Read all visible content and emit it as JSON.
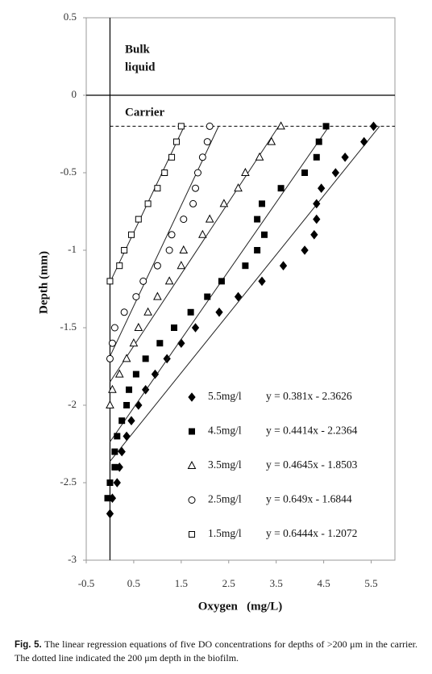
{
  "chart_data": {
    "type": "scatter",
    "xlabel": "Oxygen   (mg/L)",
    "ylabel": "Depth  (mm)",
    "xlim": [
      -0.5,
      6
    ],
    "ylim": [
      -3,
      0.5
    ],
    "xticks": [
      -0.5,
      0.5,
      1.5,
      2.5,
      3.5,
      4.5,
      5.5
    ],
    "yticks": [
      0.5,
      0,
      -0.5,
      -1,
      -1.5,
      -2,
      -2.5,
      -3
    ],
    "legend": "lower right",
    "reference_lines": [
      {
        "y": 0,
        "style": "solid"
      },
      {
        "y": -0.2,
        "style": "dashed"
      }
    ],
    "annotations": [
      {
        "lines": [
          "Bulk",
          "liquid"
        ]
      },
      {
        "lines": [
          "Carrier"
        ]
      }
    ],
    "series": [
      {
        "name": "5.5mg/l",
        "marker": "diamond",
        "filled": true,
        "color": "#000000",
        "x": [
          5.55,
          5.35,
          4.95,
          4.75,
          4.45,
          4.35,
          4.35,
          4.3,
          4.1,
          3.65,
          3.2,
          2.7,
          2.3,
          1.8,
          1.5,
          1.2,
          0.95,
          0.75,
          0.6,
          0.45,
          0.35,
          0.25,
          0.2,
          0.15,
          0.05,
          0
        ],
        "values": [
          -0.2,
          -0.3,
          -0.4,
          -0.5,
          -0.6,
          -0.7,
          -0.8,
          -0.9,
          -1.0,
          -1.1,
          -1.2,
          -1.3,
          -1.4,
          -1.5,
          -1.6,
          -1.7,
          -1.8,
          -1.9,
          -2.0,
          -2.1,
          -2.2,
          -2.3,
          -2.4,
          -2.5,
          -2.6,
          -2.7
        ],
        "fit": {
          "slope": 0.381,
          "intercept": -2.3626,
          "label": "y = 0.381x - 2.3626"
        }
      },
      {
        "name": "4.5mg/l",
        "marker": "square",
        "filled": true,
        "color": "#000000",
        "x": [
          4.55,
          4.4,
          4.35,
          4.1,
          3.6,
          3.2,
          3.1,
          3.25,
          3.1,
          2.85,
          2.35,
          2.05,
          1.7,
          1.35,
          1.05,
          0.75,
          0.55,
          0.4,
          0.35,
          0.25,
          0.15,
          0.1,
          0.1,
          0,
          -0.05
        ],
        "values": [
          -0.2,
          -0.3,
          -0.4,
          -0.5,
          -0.6,
          -0.7,
          -0.8,
          -0.9,
          -1.0,
          -1.1,
          -1.2,
          -1.3,
          -1.4,
          -1.5,
          -1.6,
          -1.7,
          -1.8,
          -1.9,
          -2.0,
          -2.1,
          -2.2,
          -2.3,
          -2.4,
          -2.5,
          -2.6
        ],
        "fit": {
          "slope": 0.4414,
          "intercept": -2.2364,
          "label": "y = 0.4414x - 2.2364"
        }
      },
      {
        "name": "3.5mg/l",
        "marker": "triangle",
        "filled": false,
        "color": "#000000",
        "x": [
          3.6,
          3.4,
          3.15,
          2.85,
          2.7,
          2.4,
          2.1,
          1.95,
          1.55,
          1.5,
          1.25,
          1.0,
          0.8,
          0.6,
          0.5,
          0.35,
          0.2,
          0.05,
          0
        ],
        "values": [
          -0.2,
          -0.3,
          -0.4,
          -0.5,
          -0.6,
          -0.7,
          -0.8,
          -0.9,
          -1.0,
          -1.1,
          -1.2,
          -1.3,
          -1.4,
          -1.5,
          -1.6,
          -1.7,
          -1.8,
          -1.9,
          -2.0
        ],
        "fit": {
          "slope": 0.4645,
          "intercept": -1.8503,
          "label": "y = 0.4645x - 1.8503"
        }
      },
      {
        "name": "2.5mg/l",
        "marker": "circle",
        "filled": false,
        "color": "#000000",
        "x": [
          2.1,
          2.05,
          1.95,
          1.85,
          1.8,
          1.75,
          1.55,
          1.3,
          1.25,
          1.0,
          0.7,
          0.55,
          0.3,
          0.1,
          0.05,
          0
        ],
        "values": [
          -0.2,
          -0.3,
          -0.4,
          -0.5,
          -0.6,
          -0.7,
          -0.8,
          -0.9,
          -1.0,
          -1.1,
          -1.2,
          -1.3,
          -1.4,
          -1.5,
          -1.6,
          -1.7
        ],
        "fit": {
          "slope": 0.649,
          "intercept": -1.6844,
          "label": "y = 0.649x - 1.6844"
        }
      },
      {
        "name": "1.5mg/l",
        "marker": "square",
        "filled": false,
        "color": "#000000",
        "x": [
          1.5,
          1.4,
          1.3,
          1.15,
          1.0,
          0.8,
          0.6,
          0.45,
          0.3,
          0.2,
          0
        ],
        "values": [
          -0.2,
          -0.3,
          -0.4,
          -0.5,
          -0.6,
          -0.7,
          -0.8,
          -0.9,
          -1.0,
          -1.1,
          -1.2
        ],
        "fit": {
          "slope": 0.6444,
          "intercept": -1.2072,
          "label": "y = 0.6444x - 1.2072"
        }
      }
    ]
  },
  "caption": {
    "label": "Fig. 5.",
    "text": "The linear regression equations of five DO concentrations for depths of >200 μm in the carrier. The dotted line indicated the 200 μm depth in the biofilm."
  }
}
